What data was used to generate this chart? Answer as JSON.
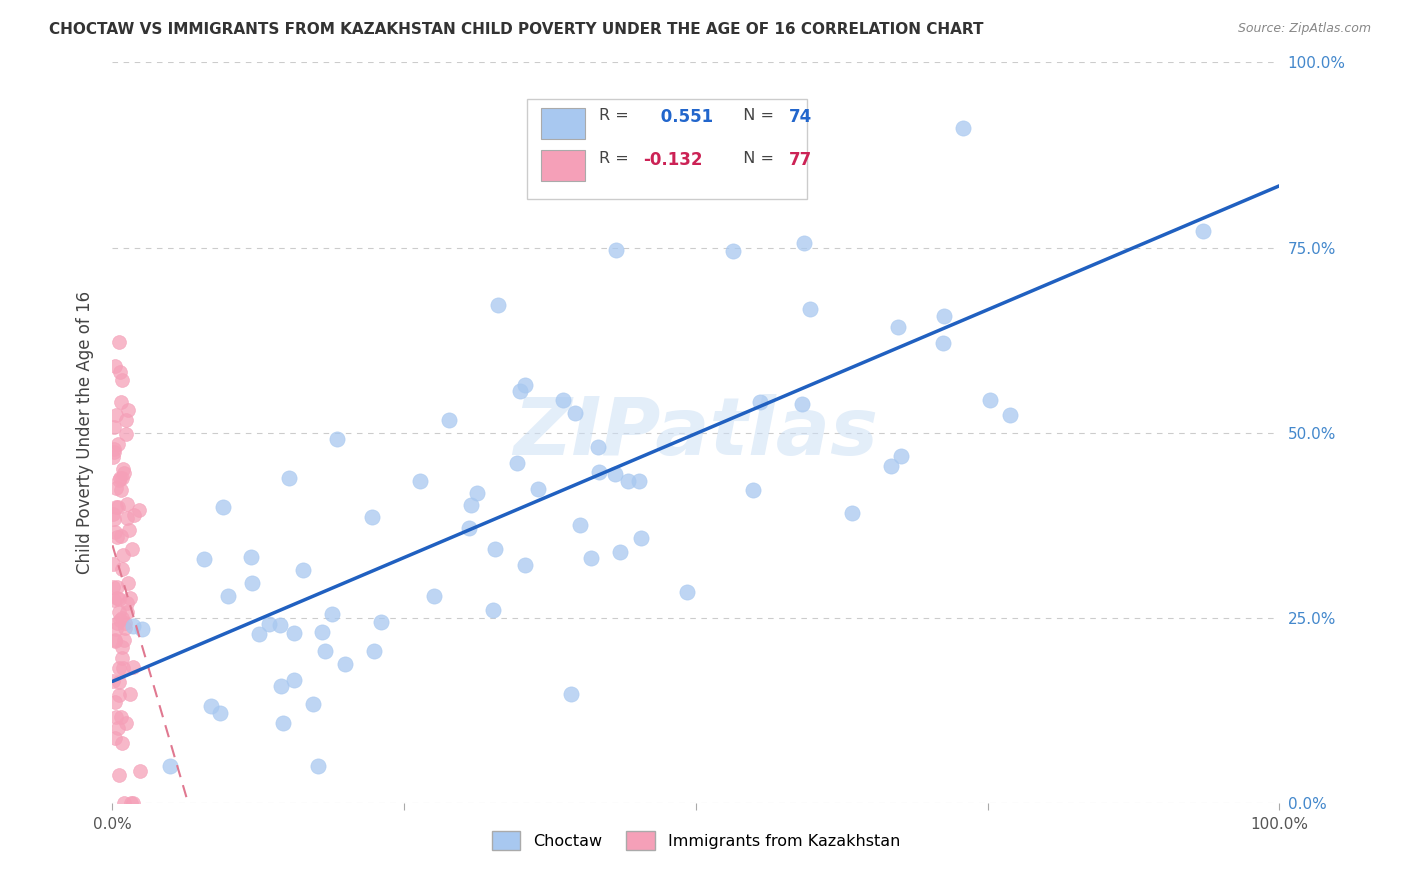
{
  "title": "CHOCTAW VS IMMIGRANTS FROM KAZAKHSTAN CHILD POVERTY UNDER THE AGE OF 16 CORRELATION CHART",
  "source": "Source: ZipAtlas.com",
  "ylabel": "Child Poverty Under the Age of 16",
  "xlim": [
    0,
    1
  ],
  "ylim": [
    0,
    1
  ],
  "xticks": [
    0,
    0.25,
    0.5,
    0.75,
    1.0
  ],
  "yticks": [
    0,
    0.25,
    0.5,
    0.75,
    1.0
  ],
  "xticklabels": [
    "0.0%",
    "",
    "",
    "",
    "100.0%"
  ],
  "yticklabels": [
    "0.0%",
    "25.0%",
    "50.0%",
    "75.0%",
    "100.0%"
  ],
  "watermark": "ZIPatlas",
  "choctaw_color": "#a8c8f0",
  "choctaw_edge_color": "#7aaed8",
  "kazakhstan_color": "#f5a0b8",
  "kazakhstan_edge_color": "#e07898",
  "choctaw_line_color": "#2060c0",
  "kazakhstan_line_color": "#e07890",
  "background_color": "#ffffff",
  "grid_color": "#cccccc",
  "right_tick_color": "#4488cc",
  "title_color": "#333333",
  "source_color": "#888888",
  "watermark_color": "#cce0f5",
  "choctaw_r": 0.551,
  "choctaw_n": 74,
  "kazakhstan_r": -0.132,
  "kazakhstan_n": 77,
  "choctaw_seed": 10,
  "kazakhstan_seed": 20
}
